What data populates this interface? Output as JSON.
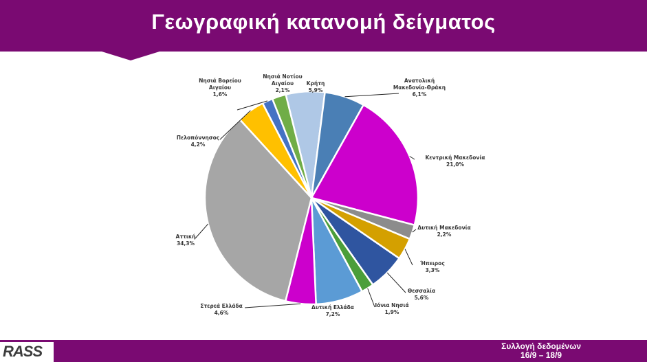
{
  "header": {
    "title": "Γεωγραφική κατανομή δείγματος"
  },
  "footer": {
    "logo": "RASS",
    "line1": "Συλλογή δεδομένων",
    "line2": "16/9 – 18/9"
  },
  "colors": {
    "brand": "#7a0a72"
  },
  "chart_data": {
    "type": "pie",
    "title": "",
    "slices": [
      {
        "label": "Κρήτη",
        "value": 5.9,
        "display": "5,9%",
        "color": "#afc8e6"
      },
      {
        "label": "Ανατολική Μακεδονία-Θράκη",
        "value": 6.1,
        "display": "6,1%",
        "color": "#4a7fb5"
      },
      {
        "label": "Κεντρική Μακεδονία",
        "value": 21.0,
        "display": "21,0%",
        "color": "#cc00cc"
      },
      {
        "label": "Δυτική Μακεδονία",
        "value": 2.2,
        "display": "2,2%",
        "color": "#8c8c8c"
      },
      {
        "label": "Ήπειρος",
        "value": 3.3,
        "display": "3,3%",
        "color": "#d4a000"
      },
      {
        "label": "Θεσσαλία",
        "value": 5.6,
        "display": "5,6%",
        "color": "#2f55a0"
      },
      {
        "label": "Ιόνια Νησιά",
        "value": 1.9,
        "display": "1,9%",
        "color": "#4b9e3a"
      },
      {
        "label": "Δυτική Ελλάδα",
        "value": 7.2,
        "display": "7,2%",
        "color": "#5b9bd5"
      },
      {
        "label": "Στερεά Ελλάδα",
        "value": 4.6,
        "display": "4,6%",
        "color": "#cc00cc"
      },
      {
        "label": "Αττική",
        "value": 34.3,
        "display": "34,3%",
        "color": "#a6a6a6"
      },
      {
        "label": "Πελοπόννησος",
        "value": 4.2,
        "display": "4,2%",
        "color": "#ffc000"
      },
      {
        "label": "Νησιά Βορείου Αιγαίου",
        "value": 1.6,
        "display": "1,6%",
        "color": "#4472c4"
      },
      {
        "label": "Νησιά Νοτίου Αιγαίου",
        "value": 2.1,
        "display": "2,1%",
        "color": "#70ad47"
      }
    ]
  }
}
